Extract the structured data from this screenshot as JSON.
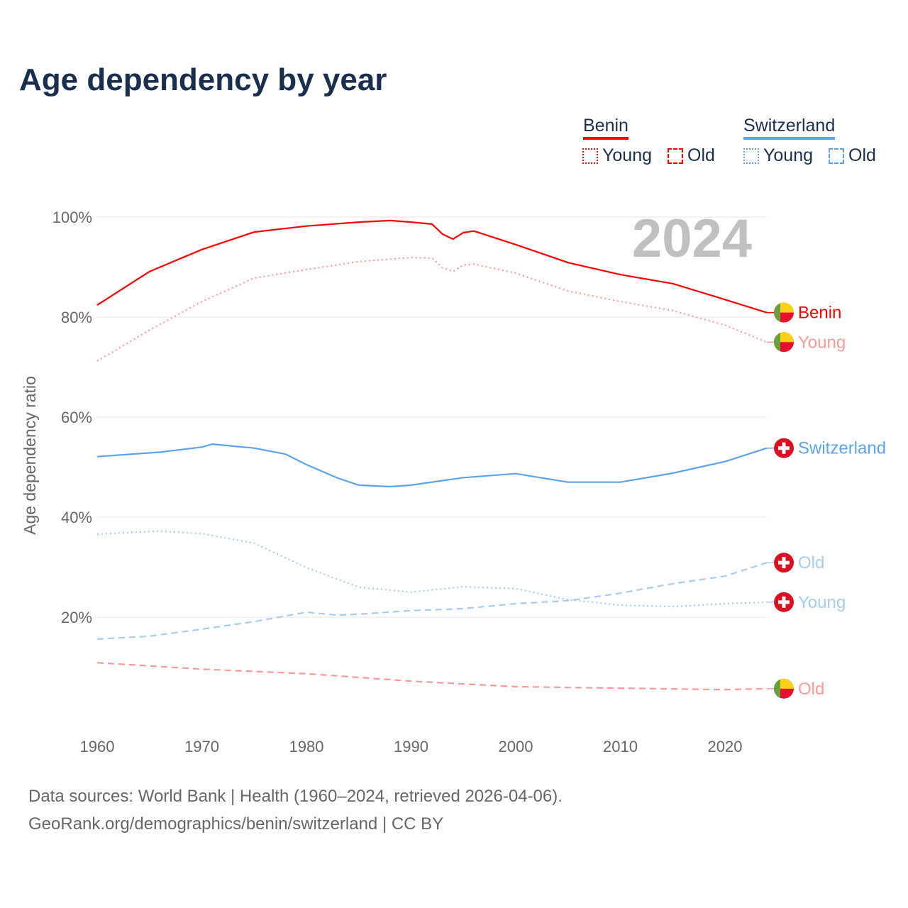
{
  "title": "Age dependency by year",
  "legend": {
    "countries": [
      {
        "name": "Benin",
        "color": "#ff0000",
        "light": "#ff9999"
      },
      {
        "name": "Switzerland",
        "color": "#5ba3ec",
        "light": "#a8cbf0"
      }
    ],
    "young": "Young",
    "old": "Old"
  },
  "year_watermark": "2024",
  "footer": {
    "line1": "Data sources: World Bank | Health (1960–2024, retrieved 2026-04-06).",
    "line2": "GeoRank.org/demographics/benin/switzerland | CC BY"
  },
  "chart_data": {
    "type": "line",
    "title": "Age dependency by year",
    "xlabel": "",
    "ylabel": "Age dependency ratio",
    "xlim": [
      1960,
      2024
    ],
    "ylim": [
      0,
      100
    ],
    "xticks": [
      "1960",
      "1970",
      "1980",
      "1990",
      "2000",
      "2010",
      "2020"
    ],
    "yticks": [
      "20%",
      "40%",
      "60%",
      "80%",
      "100%"
    ],
    "series": [
      {
        "name": "Benin",
        "end_label": "Benin",
        "country": "benin",
        "style": "solid",
        "color": "#ff0000",
        "x": [
          1960,
          1965,
          1970,
          1975,
          1980,
          1985,
          1988,
          1990,
          1992,
          1993,
          1994,
          1995,
          1996,
          2000,
          2005,
          2010,
          2015,
          2020,
          2024
        ],
        "y": [
          82.4,
          89.1,
          93.5,
          97.0,
          98.2,
          99.0,
          99.3,
          99.0,
          98.6,
          96.6,
          95.6,
          96.9,
          97.2,
          94.5,
          90.9,
          88.5,
          86.7,
          83.5,
          80.9
        ]
      },
      {
        "name": "Benin Young",
        "end_label": "Young",
        "country": "benin",
        "style": "dotted",
        "color": "#ff9999",
        "x": [
          1960,
          1965,
          1970,
          1975,
          1980,
          1985,
          1990,
          1992,
          1993,
          1994,
          1995,
          1996,
          2000,
          2005,
          2010,
          2015,
          2020,
          2024
        ],
        "y": [
          71.2,
          77.4,
          83.1,
          87.8,
          89.5,
          91.1,
          91.9,
          91.8,
          89.9,
          89.1,
          90.4,
          90.6,
          88.8,
          85.2,
          83.1,
          81.3,
          78.4,
          75.0
        ]
      },
      {
        "name": "Switzerland",
        "end_label": "Switzerland",
        "country": "switzerland",
        "style": "solid",
        "color": "#5ba3ec",
        "x": [
          1960,
          1966,
          1970,
          1971,
          1975,
          1978,
          1980,
          1983,
          1985,
          1988,
          1990,
          1995,
          2000,
          2005,
          2010,
          2015,
          2020,
          2024
        ],
        "y": [
          52.1,
          53.0,
          54.0,
          54.6,
          53.8,
          52.6,
          50.5,
          47.8,
          46.4,
          46.1,
          46.4,
          47.9,
          48.7,
          47.0,
          47.0,
          48.8,
          51.1,
          53.8
        ]
      },
      {
        "name": "Switzerland Old",
        "end_label": "Old",
        "country": "switzerland",
        "style": "dashed",
        "color": "#a8cbf0",
        "x": [
          1960,
          1965,
          1970,
          1975,
          1980,
          1983,
          1985,
          1990,
          1995,
          2000,
          2005,
          2010,
          2015,
          2020,
          2024
        ],
        "y": [
          15.6,
          16.2,
          17.6,
          19.1,
          21.0,
          20.4,
          20.6,
          21.3,
          21.7,
          22.7,
          23.3,
          24.8,
          26.7,
          28.2,
          30.9
        ]
      },
      {
        "name": "Switzerland Young",
        "end_label": "Young",
        "country": "switzerland",
        "style": "dotted",
        "color": "#a8cbf0",
        "x": [
          1960,
          1966,
          1970,
          1975,
          1980,
          1985,
          1990,
          1995,
          2000,
          2005,
          2010,
          2015,
          2020,
          2024
        ],
        "y": [
          36.6,
          37.2,
          36.7,
          34.8,
          29.9,
          26.0,
          25.0,
          26.1,
          25.7,
          23.5,
          22.4,
          22.1,
          22.7,
          23.0
        ]
      },
      {
        "name": "Benin Old",
        "end_label": "Old",
        "country": "benin",
        "style": "dashed",
        "color": "#ff9999",
        "x": [
          1960,
          1970,
          1980,
          1990,
          2000,
          2010,
          2020,
          2024
        ],
        "y": [
          10.9,
          9.6,
          8.7,
          7.2,
          6.1,
          5.8,
          5.5,
          5.7
        ]
      }
    ]
  }
}
